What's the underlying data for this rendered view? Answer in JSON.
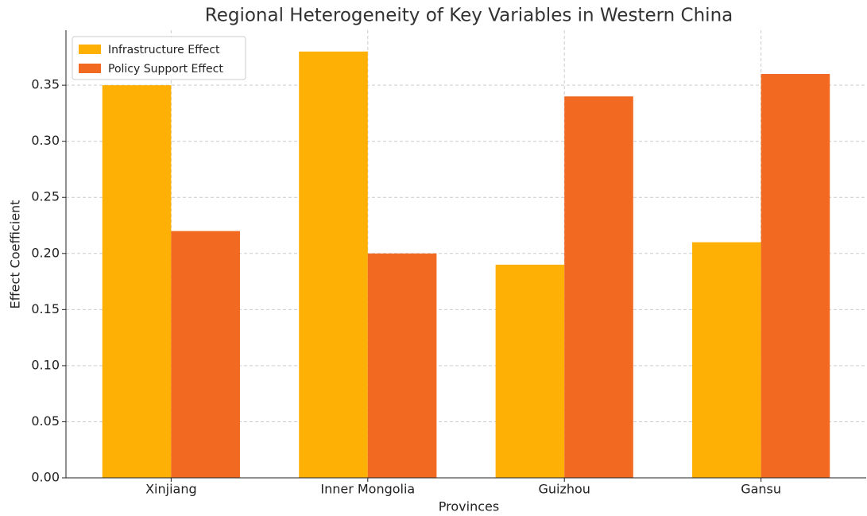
{
  "chart_data": {
    "type": "bar",
    "title": "Regional Heterogeneity of Key Variables in Western China",
    "xlabel": "Provinces",
    "ylabel": "Effect Coefficient",
    "categories": [
      "Xinjiang",
      "Inner Mongolia",
      "Guizhou",
      "Gansu"
    ],
    "series": [
      {
        "name": "Infrastructure Effect",
        "color": "#ffb005",
        "values": [
          0.35,
          0.38,
          0.19,
          0.21
        ]
      },
      {
        "name": "Policy Support Effect",
        "color": "#f26a22",
        "values": [
          0.22,
          0.2,
          0.34,
          0.36
        ]
      }
    ],
    "ylim": [
      0,
      0.399
    ],
    "yticks": [
      {
        "value": 0,
        "label": "0.00"
      },
      {
        "value": 0.05,
        "label": "0.05"
      },
      {
        "value": 0.1,
        "label": "0.10"
      },
      {
        "value": 0.15,
        "label": "0.15"
      },
      {
        "value": 0.2,
        "label": "0.20"
      },
      {
        "value": 0.25,
        "label": "0.25"
      },
      {
        "value": 0.3,
        "label": "0.30"
      },
      {
        "value": 0.35,
        "label": "0.35"
      }
    ],
    "grid": true,
    "legend": "upper left"
  }
}
